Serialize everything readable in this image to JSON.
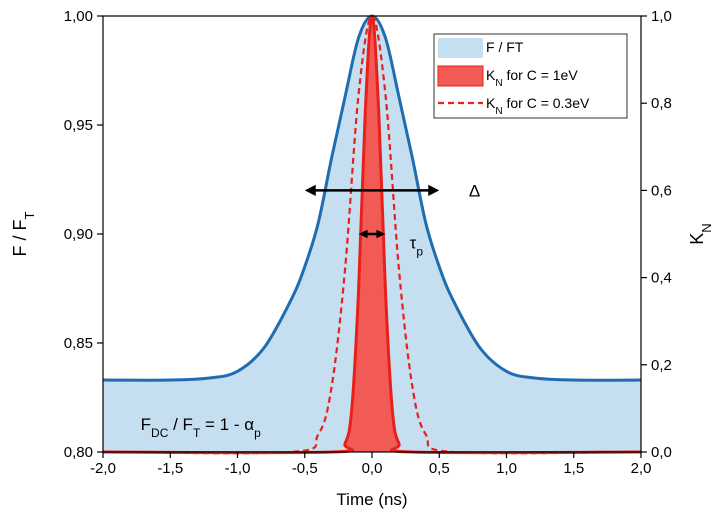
{
  "chart_data": {
    "type": "area",
    "xlabel": "Time (ns)",
    "ylabel_left": {
      "main": "F / F",
      "sub": "T"
    },
    "ylabel_right": {
      "main": "K",
      "sub": "N"
    },
    "xlim": [
      -2.0,
      2.0
    ],
    "ylim_left": [
      0.8,
      1.0
    ],
    "ylim_right": [
      0.0,
      1.0
    ],
    "x_ticks": [
      "-2,0",
      "-1,5",
      "-1,0",
      "-0,5",
      "0,0",
      "0,5",
      "1,0",
      "1,5",
      "2,0"
    ],
    "y_ticks_left": [
      "0,80",
      "0,85",
      "0,90",
      "0,95",
      "1,00"
    ],
    "y_ticks_right": [
      "0,0",
      "0,2",
      "0,4",
      "0,6",
      "0,8",
      "1,0"
    ],
    "legend_position": "top-right",
    "series": [
      {
        "name": "F / FT",
        "axis": "left",
        "style": "filled area, solid line",
        "line_color": "#1f6db0",
        "fill_color": "#c5dff0",
        "x": [
          -2.0,
          -1.5,
          -1.2,
          -1.0,
          -0.8,
          -0.6,
          -0.5,
          -0.4,
          -0.3,
          -0.2,
          -0.1,
          0.0,
          0.1,
          0.2,
          0.3,
          0.4,
          0.5,
          0.6,
          0.8,
          1.0,
          1.2,
          1.5,
          2.0
        ],
        "values": [
          0.833,
          0.833,
          0.834,
          0.837,
          0.848,
          0.87,
          0.885,
          0.905,
          0.935,
          0.963,
          0.99,
          1.0,
          0.99,
          0.963,
          0.935,
          0.905,
          0.885,
          0.87,
          0.848,
          0.837,
          0.834,
          0.833,
          0.833
        ]
      },
      {
        "name": "K_N for C = 1eV",
        "axis": "right",
        "style": "filled area, solid line",
        "line_color": "#e8201c",
        "fill_color": "#f25a55",
        "x": [
          -2.0,
          -0.3,
          -0.2,
          -0.15,
          -0.1,
          -0.05,
          0.0,
          0.05,
          0.1,
          0.15,
          0.2,
          0.3,
          2.0
        ],
        "values": [
          0.0,
          0.0,
          0.02,
          0.1,
          0.37,
          0.78,
          1.0,
          0.78,
          0.37,
          0.1,
          0.02,
          0.0,
          0.0
        ]
      },
      {
        "name": "K_N for C = 0.3eV",
        "axis": "right",
        "style": "dashed line",
        "line_color": "#e8201c",
        "x": [
          -2.0,
          -0.6,
          -0.4,
          -0.3,
          -0.2,
          -0.1,
          0.0,
          0.1,
          0.2,
          0.3,
          0.4,
          0.6,
          2.0
        ],
        "values": [
          0.0,
          0.0,
          0.04,
          0.15,
          0.42,
          0.82,
          1.0,
          0.82,
          0.42,
          0.15,
          0.04,
          0.0,
          0.0
        ]
      }
    ],
    "legend": [
      {
        "main": "F / FT",
        "sub": "",
        "rest": ""
      },
      {
        "main": "K",
        "sub": "N",
        "rest": " for C = 1eV"
      },
      {
        "main": "K",
        "sub": "N",
        "rest": " for C = 0.3eV"
      }
    ],
    "annotations": {
      "delta": {
        "symbol": "Δ",
        "x_from": -0.5,
        "x_to": 0.5,
        "y": 0.6,
        "label_x": 0.72,
        "label_y": 0.6
      },
      "tau": {
        "main": "τ",
        "sub": "p",
        "x_from": -0.1,
        "x_to": 0.1,
        "y": 0.5,
        "label_x": 0.28,
        "label_y": 0.48
      },
      "fdc": {
        "a": "F",
        "a_sub": "DC",
        "b": " / F",
        "b_sub": "T",
        "c": " = 1 - α",
        "c_sub": "p",
        "x": -1.72,
        "y": 0.06
      }
    }
  }
}
